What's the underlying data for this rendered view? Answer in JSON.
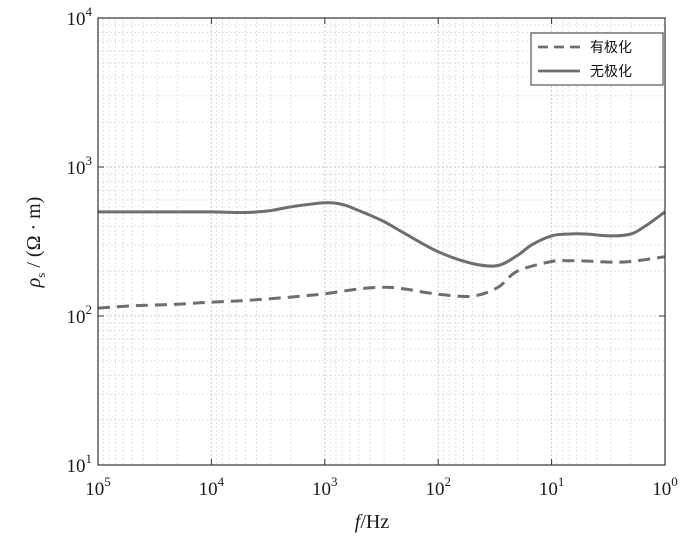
{
  "chart_data": {
    "type": "line",
    "title": "",
    "xlabel": {
      "italic": "f",
      "rest": "/Hz"
    },
    "ylabel": {
      "sym": "ρ",
      "sub": "s",
      "rest": " / (Ω · m)"
    },
    "x_scale": "log",
    "y_scale": "log",
    "x_reversed": true,
    "xlim": [
      100000,
      1
    ],
    "ylim": [
      10,
      10000
    ],
    "xticks": [
      {
        "value": 100000,
        "base": "10",
        "exp": "5"
      },
      {
        "value": 10000,
        "base": "10",
        "exp": "4"
      },
      {
        "value": 1000,
        "base": "10",
        "exp": "3"
      },
      {
        "value": 100,
        "base": "10",
        "exp": "2"
      },
      {
        "value": 10,
        "base": "10",
        "exp": "1"
      },
      {
        "value": 1,
        "base": "10",
        "exp": "0"
      }
    ],
    "yticks": [
      {
        "value": 10,
        "base": "10",
        "exp": "1"
      },
      {
        "value": 100,
        "base": "10",
        "exp": "2"
      },
      {
        "value": 1000,
        "base": "10",
        "exp": "3"
      },
      {
        "value": 10000,
        "base": "10",
        "exp": "4"
      }
    ],
    "grid": true,
    "legend_position": "top-right",
    "series": [
      {
        "name": "有极化",
        "style": "dashed",
        "color": "#6e6e6e",
        "x": [
          100000,
          50000,
          20000,
          10000,
          5000,
          2000,
          1000,
          500,
          300,
          200,
          100,
          50,
          30,
          20,
          10,
          7,
          5,
          3,
          2,
          1
        ],
        "y": [
          113,
          117,
          120,
          124,
          127,
          134,
          141,
          152,
          156,
          152,
          140,
          136,
          155,
          200,
          232,
          235,
          234,
          230,
          232,
          250
        ]
      },
      {
        "name": "无极化",
        "style": "solid",
        "color": "#6e6e6e",
        "x": [
          100000,
          50000,
          20000,
          10000,
          5000,
          3000,
          2000,
          1000,
          700,
          500,
          300,
          200,
          100,
          50,
          30,
          20,
          15,
          10,
          7,
          5,
          3,
          2,
          1.5,
          1
        ],
        "y": [
          500,
          500,
          500,
          500,
          495,
          510,
          540,
          575,
          560,
          510,
          430,
          360,
          270,
          225,
          218,
          255,
          300,
          345,
          355,
          355,
          345,
          355,
          400,
          500
        ]
      }
    ]
  }
}
